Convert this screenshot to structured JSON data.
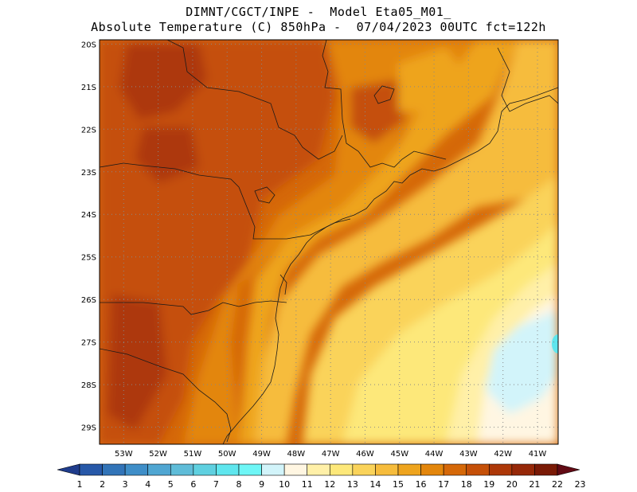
{
  "title": {
    "line1": "DIMNT/CGCT/INPE -  Model Eta05_M01_",
    "line2": "Absolute Temperature (C) 850hPa -  07/04/2023 00UTC fct=122h"
  },
  "map": {
    "lat_labels": [
      "20S",
      "21S",
      "22S",
      "23S",
      "24S",
      "25S",
      "26S",
      "27S",
      "28S",
      "29S"
    ],
    "lon_labels": [
      "53W",
      "52W",
      "51W",
      "50W",
      "49W",
      "48W",
      "47W",
      "46W",
      "45W",
      "44W",
      "43W",
      "42W",
      "41W"
    ],
    "lat_range": [
      -29.4,
      -19.9
    ],
    "lon_range": [
      -53.7,
      -40.4
    ],
    "grid": true,
    "grid_style": "dotted"
  },
  "colorbar": {
    "labels": [
      "1",
      "2",
      "3",
      "4",
      "5",
      "6",
      "7",
      "8",
      "9",
      "10",
      "11",
      "12",
      "13",
      "14",
      "15",
      "16",
      "17",
      "18",
      "19",
      "20",
      "21",
      "22",
      "23"
    ],
    "colors": [
      "#1f3c8c",
      "#2758a8",
      "#3274b8",
      "#3f8ec8",
      "#50a6d2",
      "#5fbcd8",
      "#5fd0e0",
      "#5fe6ee",
      "#6ef6f6",
      "#d2f4fa",
      "#fff6e2",
      "#fff0a8",
      "#fde87a",
      "#fad35a",
      "#f6bc3c",
      "#eea41e",
      "#e3860c",
      "#d56808",
      "#c55008",
      "#ad3808",
      "#962808",
      "#7a1a06",
      "#620a14"
    ]
  }
}
